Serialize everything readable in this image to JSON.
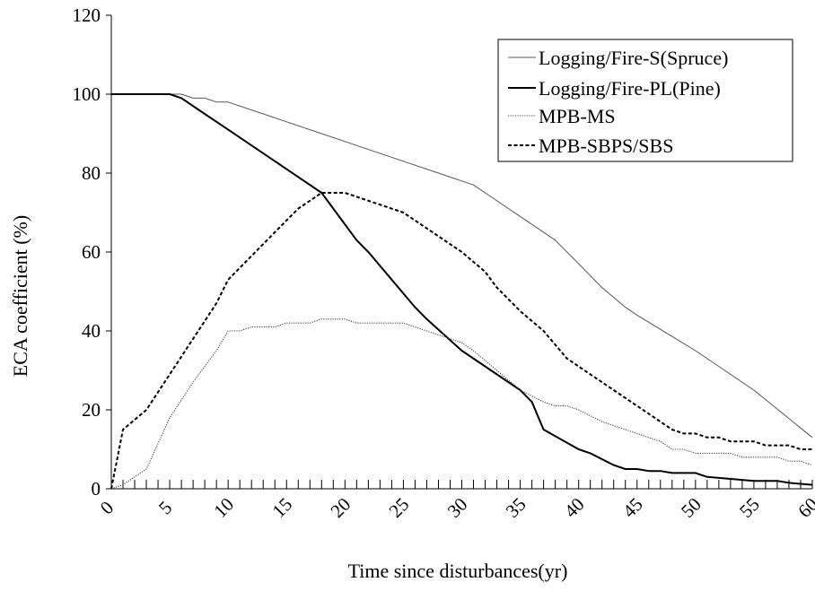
{
  "chart_data": {
    "type": "line",
    "xlabel": "Time since disturbances(yr)",
    "ylabel": "ECA coefficient (%)",
    "xlim": [
      0,
      60
    ],
    "ylim": [
      0,
      120
    ],
    "x_ticks": [
      0,
      5,
      10,
      15,
      20,
      25,
      30,
      35,
      40,
      45,
      50,
      55,
      60
    ],
    "y_ticks": [
      0,
      20,
      40,
      60,
      80,
      100,
      120
    ],
    "grid": false,
    "legend_position": "top-right",
    "series": [
      {
        "name": "Logging/Fire-S(Spruce)",
        "style": "thin-solid",
        "points": [
          [
            0,
            100
          ],
          [
            5,
            100
          ],
          [
            6,
            100
          ],
          [
            7,
            99
          ],
          [
            8,
            99
          ],
          [
            9,
            98
          ],
          [
            10,
            98
          ],
          [
            12,
            96
          ],
          [
            15,
            93
          ],
          [
            18,
            90
          ],
          [
            20,
            88
          ],
          [
            25,
            83
          ],
          [
            28,
            80
          ],
          [
            30,
            78
          ],
          [
            31,
            77
          ],
          [
            32,
            75
          ],
          [
            35,
            69
          ],
          [
            38,
            63
          ],
          [
            40,
            57
          ],
          [
            42,
            51
          ],
          [
            44,
            46
          ],
          [
            45,
            44
          ],
          [
            50,
            35
          ],
          [
            55,
            25
          ],
          [
            60,
            13
          ]
        ]
      },
      {
        "name": "Logging/Fire-PL(Pine)",
        "style": "thick-solid",
        "points": [
          [
            0,
            100
          ],
          [
            5,
            100
          ],
          [
            6,
            99
          ],
          [
            8,
            95
          ],
          [
            10,
            91
          ],
          [
            15,
            81
          ],
          [
            18,
            75
          ],
          [
            20,
            67
          ],
          [
            21,
            63
          ],
          [
            22,
            60
          ],
          [
            24,
            53
          ],
          [
            26,
            46
          ],
          [
            27,
            43
          ],
          [
            30,
            35
          ],
          [
            35,
            25
          ],
          [
            36,
            22
          ],
          [
            37,
            15
          ],
          [
            40,
            10
          ],
          [
            41,
            9
          ],
          [
            43,
            6
          ],
          [
            44,
            5
          ],
          [
            45,
            5
          ],
          [
            46,
            4.5
          ],
          [
            47,
            4.5
          ],
          [
            48,
            4
          ],
          [
            50,
            4
          ],
          [
            51,
            3
          ],
          [
            53,
            2.5
          ],
          [
            55,
            2
          ],
          [
            57,
            2
          ],
          [
            58,
            1.5
          ],
          [
            60,
            1
          ]
        ]
      },
      {
        "name": "MPB-MS",
        "style": "dotted",
        "points": [
          [
            0,
            0
          ],
          [
            1,
            1
          ],
          [
            3,
            5
          ],
          [
            5,
            18
          ],
          [
            7,
            27
          ],
          [
            9,
            35
          ],
          [
            10,
            40
          ],
          [
            11,
            40
          ],
          [
            12,
            41
          ],
          [
            14,
            41
          ],
          [
            15,
            42
          ],
          [
            17,
            42
          ],
          [
            18,
            43
          ],
          [
            20,
            43
          ],
          [
            21,
            42
          ],
          [
            25,
            42
          ],
          [
            26,
            41
          ],
          [
            28,
            39
          ],
          [
            30,
            37
          ],
          [
            31,
            35
          ],
          [
            33,
            30
          ],
          [
            35,
            25
          ],
          [
            37,
            22
          ],
          [
            38,
            21
          ],
          [
            39,
            21
          ],
          [
            40,
            20
          ],
          [
            42,
            17
          ],
          [
            45,
            14
          ],
          [
            46,
            13
          ],
          [
            47,
            12
          ],
          [
            48,
            10
          ],
          [
            49,
            10
          ],
          [
            50,
            9
          ],
          [
            53,
            9
          ],
          [
            54,
            8
          ],
          [
            57,
            8
          ],
          [
            58,
            7
          ],
          [
            59,
            7
          ],
          [
            60,
            6
          ]
        ]
      },
      {
        "name": "MPB-SBPS/SBS",
        "style": "dashed",
        "points": [
          [
            0,
            0
          ],
          [
            1,
            15
          ],
          [
            3,
            20
          ],
          [
            5,
            29
          ],
          [
            7,
            38
          ],
          [
            9,
            47
          ],
          [
            10,
            53
          ],
          [
            12,
            59
          ],
          [
            14,
            65
          ],
          [
            16,
            71
          ],
          [
            17,
            73
          ],
          [
            18,
            75
          ],
          [
            20,
            75
          ],
          [
            21,
            74
          ],
          [
            22,
            73
          ],
          [
            25,
            70
          ],
          [
            27,
            66
          ],
          [
            30,
            60
          ],
          [
            32,
            55
          ],
          [
            33,
            51
          ],
          [
            35,
            45
          ],
          [
            37,
            40
          ],
          [
            39,
            33
          ],
          [
            40,
            31
          ],
          [
            42,
            27
          ],
          [
            45,
            21
          ],
          [
            47,
            17
          ],
          [
            48,
            15
          ],
          [
            49,
            14
          ],
          [
            50,
            14
          ],
          [
            51,
            13
          ],
          [
            52,
            13
          ],
          [
            53,
            12
          ],
          [
            55,
            12
          ],
          [
            56,
            11
          ],
          [
            58,
            11
          ],
          [
            59,
            10
          ],
          [
            60,
            10
          ]
        ]
      }
    ]
  }
}
